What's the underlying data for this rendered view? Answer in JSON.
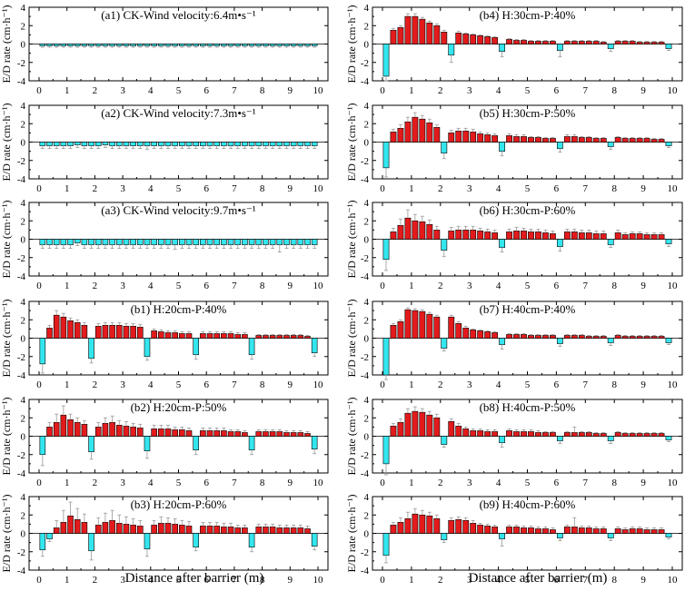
{
  "figure": {
    "xlabel": "Distance after barrier (m)",
    "ylabel": "E/D rate (cm·h⁻¹)",
    "colors": {
      "erosion": "#e31a1c",
      "deposition": "#33e6ee",
      "axis": "#000000",
      "errorbar": "#999999"
    }
  },
  "chart_data": [
    {
      "id": "a1",
      "type": "bar",
      "title": "(a1)  CK-Wind velocity:6.4m•s⁻¹",
      "xlim": [
        0,
        10
      ],
      "ylim": [
        -4,
        4
      ],
      "yticks": [
        -4,
        -2,
        0,
        2,
        4
      ],
      "xticks": [
        0,
        1,
        2,
        3,
        4,
        5,
        6,
        7,
        8,
        9,
        10
      ],
      "xlabel": "Distance after barrier (m)",
      "ylabel": "E/D rate (cm·h⁻¹)",
      "values": [
        -0.2,
        -0.2,
        -0.2,
        -0.2,
        -0.2,
        -0.2,
        -0.2,
        -0.2,
        -0.2,
        -0.2,
        -0.2,
        -0.2,
        -0.2,
        -0.2,
        -0.2,
        -0.2,
        -0.2,
        -0.2,
        -0.2,
        -0.2,
        -0.2,
        -0.2,
        -0.2,
        -0.2,
        -0.2,
        -0.2,
        -0.2,
        -0.2,
        -0.2,
        -0.2,
        -0.2,
        -0.2,
        -0.2,
        -0.2,
        -0.2,
        -0.2,
        -0.2,
        -0.2,
        -0.2,
        -0.2
      ],
      "errors": [
        0.15,
        0.15,
        0.15,
        0.15,
        0.15,
        0.15,
        0.15,
        0.15,
        0.15,
        0.15,
        0.15,
        0.15,
        0.15,
        0.15,
        0.15,
        0.15,
        0.15,
        0.15,
        0.15,
        0.15,
        0.15,
        0.15,
        0.15,
        0.15,
        0.15,
        0.15,
        0.15,
        0.15,
        0.15,
        0.15,
        0.15,
        0.15,
        0.15,
        0.15,
        0.15,
        0.15,
        0.15,
        0.15,
        0.15,
        0.15
      ]
    },
    {
      "id": "a2",
      "type": "bar",
      "title": "(a2)  CK-Wind velocity:7.3m•s⁻¹",
      "xlim": [
        0,
        10
      ],
      "ylim": [
        -4,
        4
      ],
      "yticks": [
        -4,
        -2,
        0,
        2,
        4
      ],
      "xticks": [
        0,
        1,
        2,
        3,
        4,
        5,
        6,
        7,
        8,
        9,
        10
      ],
      "xlabel": "Distance after barrier (m)",
      "ylabel": "E/D rate (cm·h⁻¹)",
      "values": [
        -0.4,
        -0.4,
        -0.4,
        -0.4,
        -0.4,
        -0.3,
        -0.4,
        -0.4,
        -0.4,
        -0.3,
        -0.4,
        -0.4,
        -0.4,
        -0.4,
        -0.4,
        -0.4,
        -0.4,
        -0.4,
        -0.4,
        -0.4,
        -0.4,
        -0.4,
        -0.4,
        -0.4,
        -0.4,
        -0.4,
        -0.4,
        -0.4,
        -0.4,
        -0.4,
        -0.4,
        -0.4,
        -0.4,
        -0.4,
        -0.4,
        -0.4,
        -0.4,
        -0.4,
        -0.4,
        -0.4
      ],
      "errors": [
        0.3,
        0.3,
        0.3,
        0.3,
        0.3,
        0.3,
        0.3,
        0.3,
        0.3,
        0.3,
        0.3,
        0.3,
        0.3,
        0.3,
        0.3,
        0.4,
        0.3,
        0.3,
        0.3,
        0.3,
        0.3,
        0.3,
        0.3,
        0.3,
        0.3,
        0.3,
        0.3,
        0.3,
        0.3,
        0.3,
        0.3,
        0.3,
        0.3,
        0.3,
        0.3,
        0.3,
        0.3,
        0.3,
        0.3,
        0.3
      ]
    },
    {
      "id": "a3",
      "type": "bar",
      "title": "(a3)  CK-Wind velocity:9.7m•s⁻¹",
      "xlim": [
        0,
        10
      ],
      "ylim": [
        -4,
        4
      ],
      "yticks": [
        -4,
        -2,
        0,
        2,
        4
      ],
      "xticks": [
        0,
        1,
        2,
        3,
        4,
        5,
        6,
        7,
        8,
        9,
        10
      ],
      "xlabel": "Distance after barrier (m)",
      "ylabel": "E/D rate (cm·h⁻¹)",
      "values": [
        -0.6,
        -0.6,
        -0.6,
        -0.6,
        -0.6,
        -0.4,
        -0.6,
        -0.6,
        -0.6,
        -0.6,
        -0.6,
        -0.6,
        -0.6,
        -0.6,
        -0.6,
        -0.6,
        -0.6,
        -0.6,
        -0.6,
        -0.6,
        -0.6,
        -0.6,
        -0.6,
        -0.6,
        -0.6,
        -0.6,
        -0.6,
        -0.6,
        -0.6,
        -0.6,
        -0.6,
        -0.6,
        -0.6,
        -0.6,
        -0.6,
        -0.6,
        -0.6,
        -0.6,
        -0.6,
        -0.6
      ],
      "errors": [
        0.4,
        0.4,
        0.4,
        0.4,
        0.4,
        0.3,
        0.4,
        0.4,
        0.4,
        0.4,
        0.4,
        0.4,
        0.4,
        0.4,
        0.4,
        0.4,
        0.4,
        0.4,
        0.4,
        0.5,
        0.4,
        0.4,
        0.4,
        0.4,
        0.4,
        0.4,
        0.4,
        0.4,
        0.4,
        0.4,
        0.4,
        0.4,
        0.4,
        0.4,
        0.8,
        0.4,
        0.4,
        0.4,
        0.4,
        0.4
      ]
    },
    {
      "id": "b1",
      "type": "bar",
      "title": "(b1)  H:20cm-P:40%",
      "xlim": [
        0,
        10
      ],
      "ylim": [
        -4,
        4
      ],
      "yticks": [
        -4,
        -2,
        0,
        2,
        4
      ],
      "xticks": [
        0,
        1,
        2,
        3,
        4,
        5,
        6,
        7,
        8,
        9,
        10
      ],
      "xlabel": "Distance after barrier (m)",
      "ylabel": "E/D rate (cm·h⁻¹)",
      "values": [
        -2.8,
        1.1,
        2.5,
        2.3,
        1.9,
        1.7,
        1.4,
        -2.2,
        1.3,
        1.4,
        1.4,
        1.4,
        1.3,
        1.3,
        1.2,
        -2.0,
        0.8,
        0.7,
        0.6,
        0.6,
        0.5,
        0.5,
        -1.8,
        0.5,
        0.5,
        0.5,
        0.5,
        0.5,
        0.4,
        0.4,
        -1.8,
        0.3,
        0.3,
        0.3,
        0.3,
        0.3,
        0.3,
        0.3,
        0.2,
        -1.6
      ],
      "errors": [
        1.0,
        0.3,
        0.5,
        0.4,
        0.3,
        0.3,
        0.3,
        0.5,
        0.3,
        0.3,
        0.3,
        0.3,
        0.3,
        0.3,
        0.3,
        0.4,
        0.2,
        0.2,
        0.2,
        0.2,
        0.2,
        0.2,
        0.5,
        0.2,
        0.2,
        0.2,
        0.2,
        0.2,
        0.2,
        0.2,
        0.5,
        0.1,
        0.1,
        0.1,
        0.1,
        0.1,
        0.1,
        0.1,
        0.1,
        0.4
      ]
    },
    {
      "id": "b2",
      "type": "bar",
      "title": "(b2)  H:20cm-P:50%",
      "xlim": [
        0,
        10
      ],
      "ylim": [
        -4,
        4
      ],
      "yticks": [
        -4,
        -2,
        0,
        2,
        4
      ],
      "xticks": [
        0,
        1,
        2,
        3,
        4,
        5,
        6,
        7,
        8,
        9,
        10
      ],
      "xlabel": "Distance after barrier (m)",
      "ylabel": "E/D rate (cm·h⁻¹)",
      "values": [
        -2.0,
        1.0,
        1.5,
        2.3,
        1.8,
        1.5,
        1.3,
        -1.7,
        1.0,
        1.4,
        1.5,
        1.2,
        1.1,
        1.0,
        0.9,
        -1.6,
        0.8,
        0.8,
        0.8,
        0.7,
        0.7,
        0.6,
        -1.5,
        0.6,
        0.6,
        0.6,
        0.6,
        0.5,
        0.5,
        0.4,
        -1.5,
        0.5,
        0.5,
        0.5,
        0.5,
        0.4,
        0.4,
        0.4,
        0.3,
        -1.4
      ],
      "errors": [
        1.2,
        0.5,
        0.9,
        1.0,
        0.6,
        0.5,
        0.4,
        0.8,
        0.5,
        0.6,
        0.7,
        0.5,
        0.5,
        0.4,
        0.4,
        0.8,
        0.4,
        0.4,
        0.4,
        0.3,
        0.3,
        0.3,
        0.5,
        0.3,
        0.3,
        0.3,
        0.3,
        0.2,
        0.2,
        0.2,
        0.5,
        0.2,
        0.2,
        0.2,
        0.2,
        0.2,
        0.2,
        0.2,
        0.2,
        0.5
      ]
    },
    {
      "id": "b3",
      "type": "bar",
      "title": "(b3)  H:20cm-P:60%",
      "xlim": [
        0,
        10
      ],
      "ylim": [
        -4,
        4
      ],
      "yticks": [
        -4,
        -2,
        0,
        2,
        4
      ],
      "xticks": [
        0,
        1,
        2,
        3,
        4,
        5,
        6,
        7,
        8,
        9,
        10
      ],
      "xlabel": "Distance after barrier (m)",
      "ylabel": "E/D rate (cm·h⁻¹)",
      "values": [
        -1.8,
        -0.6,
        0.6,
        1.2,
        1.9,
        1.5,
        1.2,
        -1.9,
        0.9,
        1.2,
        1.4,
        1.1,
        1.0,
        0.9,
        0.8,
        -1.7,
        0.9,
        1.1,
        1.1,
        1.0,
        0.9,
        0.8,
        -1.5,
        0.8,
        0.8,
        0.8,
        0.7,
        0.7,
        0.6,
        0.6,
        -1.5,
        0.7,
        0.7,
        0.7,
        0.6,
        0.6,
        0.6,
        0.6,
        0.5,
        -1.4
      ],
      "errors": [
        0.7,
        0.3,
        0.8,
        1.3,
        1.5,
        1.2,
        0.9,
        1.0,
        0.8,
        1.0,
        1.1,
        0.9,
        0.8,
        0.7,
        0.6,
        0.8,
        0.5,
        0.7,
        0.6,
        0.6,
        0.5,
        0.5,
        0.4,
        0.4,
        0.4,
        0.4,
        0.4,
        0.4,
        0.3,
        0.3,
        0.5,
        0.3,
        0.3,
        0.3,
        0.3,
        0.3,
        0.3,
        0.3,
        0.3,
        0.4
      ]
    },
    {
      "id": "b4",
      "type": "bar",
      "title": "(b4)  H:30cm-P:40%",
      "xlim": [
        0,
        10
      ],
      "ylim": [
        -4,
        4
      ],
      "yticks": [
        -4,
        -2,
        0,
        2,
        4
      ],
      "xticks": [
        0,
        1,
        2,
        3,
        4,
        5,
        6,
        7,
        8,
        9,
        10
      ],
      "xlabel": "Distance after barrier (m)",
      "ylabel": "E/D rate (cm·h⁻¹)",
      "values": [
        -3.5,
        1.5,
        1.8,
        3.0,
        3.0,
        2.7,
        2.3,
        2.0,
        1.3,
        -1.2,
        1.2,
        1.1,
        1.0,
        0.9,
        0.8,
        0.7,
        -0.8,
        0.5,
        0.4,
        0.4,
        0.3,
        0.3,
        0.3,
        0.3,
        -0.7,
        0.3,
        0.3,
        0.3,
        0.3,
        0.3,
        0.2,
        -0.5,
        0.3,
        0.3,
        0.3,
        0.2,
        0.2,
        0.2,
        0.2,
        -0.5
      ],
      "errors": [
        0.5,
        0.2,
        0.2,
        0.3,
        0.3,
        0.2,
        0.2,
        0.2,
        0.2,
        0.8,
        0.2,
        0.1,
        0.1,
        0.1,
        0.1,
        0.1,
        0.6,
        0.1,
        0.1,
        0.1,
        0.1,
        0.1,
        0.1,
        0.1,
        0.7,
        0.1,
        0.1,
        0.1,
        0.1,
        0.1,
        0.1,
        0.3,
        0.1,
        0.1,
        0.1,
        0.1,
        0.1,
        0.1,
        0.1,
        0.2
      ]
    },
    {
      "id": "b5",
      "type": "bar",
      "title": "(b5)  H:30cm-P:50%",
      "xlim": [
        0,
        10
      ],
      "ylim": [
        -4,
        4
      ],
      "yticks": [
        -4,
        -2,
        0,
        2,
        4
      ],
      "xticks": [
        0,
        1,
        2,
        3,
        4,
        5,
        6,
        7,
        8,
        9,
        10
      ],
      "xlabel": "Distance after barrier (m)",
      "ylabel": "E/D rate (cm·h⁻¹)",
      "values": [
        -2.8,
        1.1,
        1.5,
        2.2,
        2.7,
        2.5,
        2.1,
        1.6,
        -1.2,
        1.0,
        1.2,
        1.2,
        1.1,
        0.9,
        0.8,
        0.7,
        -1.0,
        0.7,
        0.6,
        0.6,
        0.5,
        0.5,
        0.4,
        0.4,
        -0.7,
        0.6,
        0.6,
        0.5,
        0.5,
        0.4,
        0.4,
        -0.5,
        0.5,
        0.4,
        0.4,
        0.4,
        0.4,
        0.3,
        0.3,
        -0.4
      ],
      "errors": [
        1.0,
        0.3,
        0.4,
        0.5,
        0.5,
        0.4,
        0.4,
        0.3,
        0.6,
        0.3,
        0.3,
        0.3,
        0.3,
        0.2,
        0.2,
        0.2,
        0.5,
        0.2,
        0.2,
        0.2,
        0.1,
        0.1,
        0.1,
        0.1,
        0.4,
        0.2,
        0.2,
        0.1,
        0.1,
        0.1,
        0.1,
        0.3,
        0.1,
        0.1,
        0.1,
        0.1,
        0.1,
        0.1,
        0.1,
        0.2
      ]
    },
    {
      "id": "b6",
      "type": "bar",
      "title": "(b6)  H:30cm-P:60%",
      "xlim": [
        0,
        10
      ],
      "ylim": [
        -4,
        4
      ],
      "yticks": [
        -4,
        -2,
        0,
        2,
        4
      ],
      "xticks": [
        0,
        1,
        2,
        3,
        4,
        5,
        6,
        7,
        8,
        9,
        10
      ],
      "xlabel": "Distance after barrier (m)",
      "ylabel": "E/D rate (cm·h⁻¹)",
      "values": [
        -2.2,
        0.8,
        1.5,
        2.3,
        2.0,
        1.9,
        1.6,
        1.0,
        -1.2,
        0.9,
        1.0,
        1.0,
        1.0,
        0.9,
        0.8,
        0.7,
        -0.9,
        0.8,
        0.9,
        0.9,
        0.8,
        0.8,
        0.7,
        0.6,
        -0.8,
        0.8,
        0.8,
        0.7,
        0.7,
        0.6,
        0.6,
        -0.6,
        0.7,
        0.5,
        0.6,
        0.6,
        0.5,
        0.5,
        0.5,
        -0.5
      ],
      "errors": [
        1.2,
        0.4,
        0.7,
        0.9,
        0.7,
        0.6,
        0.5,
        0.4,
        0.7,
        0.4,
        0.4,
        0.4,
        0.4,
        0.3,
        0.3,
        0.3,
        0.5,
        0.3,
        0.4,
        0.3,
        0.3,
        0.3,
        0.3,
        0.3,
        0.5,
        0.3,
        0.3,
        0.3,
        0.3,
        0.3,
        0.3,
        0.3,
        0.3,
        0.2,
        0.2,
        0.2,
        0.2,
        0.2,
        0.2,
        0.3
      ]
    },
    {
      "id": "b7",
      "type": "bar",
      "title": "(b7)  H:40cm-P:40%",
      "xlim": [
        0,
        10
      ],
      "ylim": [
        -4,
        4
      ],
      "yticks": [
        -4,
        -2,
        0,
        2,
        4
      ],
      "xticks": [
        0,
        1,
        2,
        3,
        4,
        5,
        6,
        7,
        8,
        9,
        10
      ],
      "xlabel": "Distance after barrier (m)",
      "ylabel": "E/D rate (cm·h⁻¹)",
      "values": [
        -4.0,
        1.4,
        1.8,
        3.1,
        3.0,
        2.9,
        2.6,
        2.3,
        -1.1,
        2.3,
        1.6,
        1.1,
        0.9,
        0.8,
        0.7,
        0.6,
        -0.7,
        0.4,
        0.4,
        0.4,
        0.3,
        0.3,
        0.3,
        0.3,
        -0.6,
        0.3,
        0.3,
        0.3,
        0.2,
        0.2,
        0.2,
        -0.5,
        0.3,
        0.2,
        0.2,
        0.2,
        0.2,
        0.2,
        0.2,
        -0.5
      ],
      "errors": [
        0.5,
        0.2,
        0.2,
        0.2,
        0.2,
        0.2,
        0.2,
        0.2,
        0.3,
        0.2,
        0.2,
        0.2,
        0.1,
        0.1,
        0.1,
        0.1,
        0.5,
        0.1,
        0.1,
        0.1,
        0.1,
        0.1,
        0.1,
        0.1,
        0.3,
        0.1,
        0.1,
        0.1,
        0.1,
        0.1,
        0.1,
        0.3,
        0.1,
        0.1,
        0.1,
        0.1,
        0.1,
        0.1,
        0.1,
        0.2
      ]
    },
    {
      "id": "b8",
      "type": "bar",
      "title": "(b8)  H:40cm-P:50%",
      "xlim": [
        0,
        10
      ],
      "ylim": [
        -4,
        4
      ],
      "yticks": [
        -4,
        -2,
        0,
        2,
        4
      ],
      "xticks": [
        0,
        1,
        2,
        3,
        4,
        5,
        6,
        7,
        8,
        9,
        10
      ],
      "xlabel": "Distance after barrier (m)",
      "ylabel": "E/D rate (cm·h⁻¹)",
      "values": [
        -3.0,
        1.1,
        1.5,
        2.5,
        2.7,
        2.6,
        2.3,
        2.0,
        -0.9,
        1.6,
        1.1,
        0.8,
        0.6,
        0.6,
        0.5,
        0.5,
        -0.7,
        0.6,
        0.5,
        0.5,
        0.5,
        0.4,
        0.4,
        0.4,
        -0.5,
        0.4,
        0.4,
        0.4,
        0.4,
        0.3,
        0.3,
        -0.5,
        0.4,
        0.3,
        0.3,
        0.3,
        0.3,
        0.3,
        0.3,
        -0.4
      ],
      "errors": [
        1.2,
        0.3,
        0.4,
        0.5,
        0.5,
        0.4,
        0.4,
        0.4,
        0.3,
        0.3,
        0.3,
        0.2,
        0.2,
        0.2,
        0.2,
        0.2,
        0.5,
        0.2,
        0.2,
        0.2,
        0.2,
        0.2,
        0.1,
        0.1,
        0.3,
        0.1,
        0.6,
        0.1,
        0.1,
        0.1,
        0.1,
        0.3,
        0.1,
        0.1,
        0.1,
        0.1,
        0.1,
        0.1,
        0.1,
        0.2
      ]
    },
    {
      "id": "b9",
      "type": "bar",
      "title": "(b9)  H:40cm-P:60%",
      "xlim": [
        0,
        10
      ],
      "ylim": [
        -4,
        4
      ],
      "yticks": [
        -4,
        -2,
        0,
        2,
        4
      ],
      "xticks": [
        0,
        1,
        2,
        3,
        4,
        5,
        6,
        7,
        8,
        9,
        10
      ],
      "xlabel": "Distance after barrier (m)",
      "ylabel": "E/D rate (cm·h⁻¹)",
      "values": [
        -2.4,
        0.9,
        1.2,
        1.6,
        2.1,
        2.0,
        1.9,
        1.6,
        -0.7,
        1.4,
        1.5,
        1.4,
        1.1,
        0.9,
        0.8,
        0.7,
        -0.6,
        0.7,
        0.7,
        0.6,
        0.6,
        0.5,
        0.5,
        0.4,
        -0.5,
        0.7,
        0.7,
        0.6,
        0.6,
        0.5,
        0.5,
        -0.5,
        0.5,
        0.4,
        0.5,
        0.5,
        0.4,
        0.4,
        0.4,
        -0.4
      ],
      "errors": [
        0.8,
        0.3,
        0.5,
        0.7,
        0.6,
        0.5,
        0.4,
        0.4,
        0.3,
        0.3,
        0.3,
        0.3,
        0.3,
        0.2,
        0.2,
        0.2,
        0.8,
        0.2,
        0.2,
        0.2,
        0.2,
        0.2,
        0.2,
        0.2,
        0.3,
        0.2,
        1.0,
        0.2,
        0.2,
        0.2,
        0.2,
        0.3,
        0.2,
        0.2,
        0.2,
        0.2,
        0.2,
        0.2,
        0.2,
        0.2
      ]
    }
  ]
}
